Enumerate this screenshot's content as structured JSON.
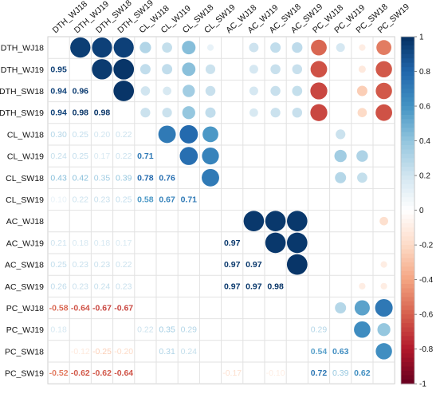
{
  "chart_data": {
    "type": "heatmap",
    "variables": [
      "DTH_WJ18",
      "DTH_WJ19",
      "DTH_SW18",
      "DTH_SW19",
      "CL_WJ18",
      "CL_WJ19",
      "CL_SW18",
      "CL_SW19",
      "AC_WJ18",
      "AC_WJ19",
      "AC_SW18",
      "AC_SW19",
      "PC_WJ18",
      "PC_WJ19",
      "PC_SW18",
      "PC_SW19"
    ],
    "column_labels": [
      "DTH_WJ18",
      "DTH_WJ19",
      "DTH_SW18",
      "DTH_SW19",
      "CL_WJ18",
      "CL_WJ19",
      "CL_SW18",
      "CL_SW19",
      "AC_WJ18",
      "AC_WJ19",
      "AC_SW18",
      "AC_SW19",
      "PC_WJ18",
      "PC_WJ19",
      "PC_SW18",
      "PC_SW19"
    ],
    "lower_triangle": "numbers",
    "upper_triangle": "circles",
    "matrix": [
      [
        1,
        0.95,
        0.94,
        0.94,
        0.3,
        0.24,
        0.43,
        0.1,
        0.0,
        0.21,
        0.25,
        0.26,
        -0.58,
        0.18,
        -0.1,
        -0.52
      ],
      [
        0.95,
        1,
        0.96,
        0.98,
        0.25,
        0.25,
        0.42,
        0.22,
        0.0,
        0.18,
        0.23,
        0.23,
        -0.64,
        0.0,
        -0.12,
        -0.62
      ],
      [
        0.94,
        0.96,
        1,
        0.98,
        0.2,
        0.17,
        0.35,
        0.23,
        0.0,
        0.18,
        0.23,
        0.24,
        -0.67,
        0.0,
        -0.25,
        -0.62
      ],
      [
        0.94,
        0.98,
        0.98,
        1,
        0.22,
        0.22,
        0.39,
        0.25,
        0.0,
        0.17,
        0.22,
        0.23,
        -0.67,
        0.0,
        -0.2,
        -0.64
      ],
      [
        0.3,
        0.25,
        0.2,
        0.22,
        1,
        0.71,
        0.78,
        0.58,
        0.0,
        0.0,
        0.0,
        0.0,
        0.0,
        0.22,
        0.0,
        0.0
      ],
      [
        0.24,
        0.25,
        0.17,
        0.22,
        0.71,
        1,
        0.76,
        0.67,
        0.0,
        0.0,
        0.0,
        0.0,
        0.0,
        0.35,
        0.31,
        0.0
      ],
      [
        0.43,
        0.42,
        0.35,
        0.39,
        0.78,
        0.76,
        1,
        0.71,
        0.0,
        0.0,
        0.0,
        0.0,
        0.0,
        0.29,
        0.24,
        0.0
      ],
      [
        0.1,
        0.22,
        0.23,
        0.25,
        0.58,
        0.67,
        0.71,
        1,
        0.0,
        0.0,
        0.0,
        0.0,
        0.0,
        0.0,
        0.0,
        0.0
      ],
      [
        0.0,
        0.0,
        0.0,
        0.0,
        0.0,
        0.0,
        0.0,
        0.0,
        1,
        0.97,
        0.97,
        0.97,
        0.0,
        0.0,
        0.0,
        -0.17
      ],
      [
        0.21,
        0.18,
        0.18,
        0.17,
        0.0,
        0.0,
        0.0,
        0.0,
        0.97,
        1,
        0.97,
        0.97,
        0.0,
        0.0,
        0.0,
        0.0
      ],
      [
        0.25,
        0.23,
        0.23,
        0.22,
        0.0,
        0.0,
        0.0,
        0.0,
        0.97,
        0.97,
        1,
        0.98,
        0.0,
        0.0,
        0.0,
        -0.1
      ],
      [
        0.26,
        0.23,
        0.24,
        0.23,
        0.0,
        0.0,
        0.0,
        0.0,
        0.97,
        0.97,
        0.98,
        1,
        0.0,
        0.0,
        -0.1,
        -0.1
      ],
      [
        -0.58,
        -0.64,
        -0.67,
        -0.67,
        0.0,
        0.0,
        0.0,
        0.0,
        0.0,
        0.0,
        0.0,
        0.0,
        1,
        0.29,
        0.54,
        0.72
      ],
      [
        0.18,
        0.0,
        0.0,
        0.0,
        0.22,
        0.35,
        0.29,
        0.0,
        0.0,
        0.0,
        0.0,
        0.0,
        0.29,
        1,
        0.63,
        0.39
      ],
      [
        -0.1,
        -0.12,
        -0.25,
        -0.2,
        0.0,
        0.31,
        0.24,
        0.0,
        0.0,
        0.0,
        0.0,
        -0.1,
        0.54,
        0.63,
        1,
        0.62
      ],
      [
        -0.52,
        -0.62,
        -0.62,
        -0.64,
        0.0,
        0.0,
        0.0,
        0.0,
        -0.17,
        0.0,
        -0.1,
        -0.1,
        0.72,
        0.39,
        0.62,
        1
      ]
    ],
    "lower_labels": [
      [
        "",
        "",
        "",
        "",
        "",
        "",
        "",
        "",
        "",
        "",
        "",
        "",
        "",
        "",
        "",
        ""
      ],
      [
        "0.95",
        "",
        "",
        "",
        "",
        "",
        "",
        "",
        "",
        "",
        "",
        "",
        "",
        "",
        "",
        ""
      ],
      [
        "0.94",
        "0.96",
        "",
        "",
        "",
        "",
        "",
        "",
        "",
        "",
        "",
        "",
        "",
        "",
        "",
        ""
      ],
      [
        "0.94",
        "0.98",
        "0.98",
        "",
        "",
        "",
        "",
        "",
        "",
        "",
        "",
        "",
        "",
        "",
        "",
        ""
      ],
      [
        "0.30",
        "0.25",
        "0.20",
        "0.22",
        "",
        "",
        "",
        "",
        "",
        "",
        "",
        "",
        "",
        "",
        "",
        ""
      ],
      [
        "0.24",
        "0.25",
        "0.17",
        "0.22",
        "0.71",
        "",
        "",
        "",
        "",
        "",
        "",
        "",
        "",
        "",
        "",
        ""
      ],
      [
        "0.43",
        "0.42",
        "0.35",
        "0.39",
        "0.78",
        "0.76",
        "",
        "",
        "",
        "",
        "",
        "",
        "",
        "",
        "",
        ""
      ],
      [
        "0.10",
        "0.22",
        "0.23",
        "0.25",
        "0.58",
        "0.67",
        "0.71",
        "",
        "",
        "",
        "",
        "",
        "",
        "",
        "",
        ""
      ],
      [
        "",
        "",
        "",
        "",
        "",
        "",
        "",
        "",
        "",
        "",
        "",
        "",
        "",
        "",
        "",
        ""
      ],
      [
        "0.21",
        "0.18",
        "0.18",
        "0.17",
        "",
        "",
        "",
        "",
        "0.97",
        "",
        "",
        "",
        "",
        "",
        "",
        ""
      ],
      [
        "0.25",
        "0.23",
        "0.23",
        "0.22",
        "",
        "",
        "",
        "",
        "0.97",
        "0.97",
        "",
        "",
        "",
        "",
        "",
        ""
      ],
      [
        "0.26",
        "0.23",
        "0.24",
        "0.23",
        "",
        "",
        "",
        "",
        "0.97",
        "0.97",
        "0.98",
        "",
        "",
        "",
        "",
        ""
      ],
      [
        "-0.58",
        "-0.64",
        "-0.67",
        "-0.67",
        "",
        "",
        "",
        "",
        "",
        "",
        "",
        "",
        "",
        "",
        "",
        ""
      ],
      [
        "0.18",
        "",
        "",
        "",
        "0.22",
        "0.35",
        "0.29",
        "",
        "",
        "",
        "",
        "",
        "0.29",
        "",
        "",
        ""
      ],
      [
        "",
        "-0.12",
        "-0.25",
        "-0.20",
        "",
        "0.31",
        "0.24",
        "",
        "",
        "",
        "",
        "",
        "0.54",
        "0.63",
        "",
        ""
      ],
      [
        "-0.52",
        "-0.62",
        "-0.62",
        "-0.64",
        "",
        "",
        "",
        "",
        "-0.17",
        "",
        "-0.10",
        "",
        "0.72",
        "0.39",
        "0.62",
        ""
      ]
    ],
    "colorbar": {
      "min": -1,
      "max": 1,
      "ticks": [
        "1",
        "0.8",
        "0.6",
        "0.4",
        "0.2",
        "0",
        "-0.2",
        "-0.4",
        "-0.6",
        "-0.8",
        "-1"
      ],
      "colors": [
        "#67001f",
        "#b2182b",
        "#d6604d",
        "#f4a582",
        "#fddbc7",
        "#ffffff",
        "#d1e5f0",
        "#92c5de",
        "#4393c3",
        "#2166ac",
        "#053061"
      ]
    }
  }
}
